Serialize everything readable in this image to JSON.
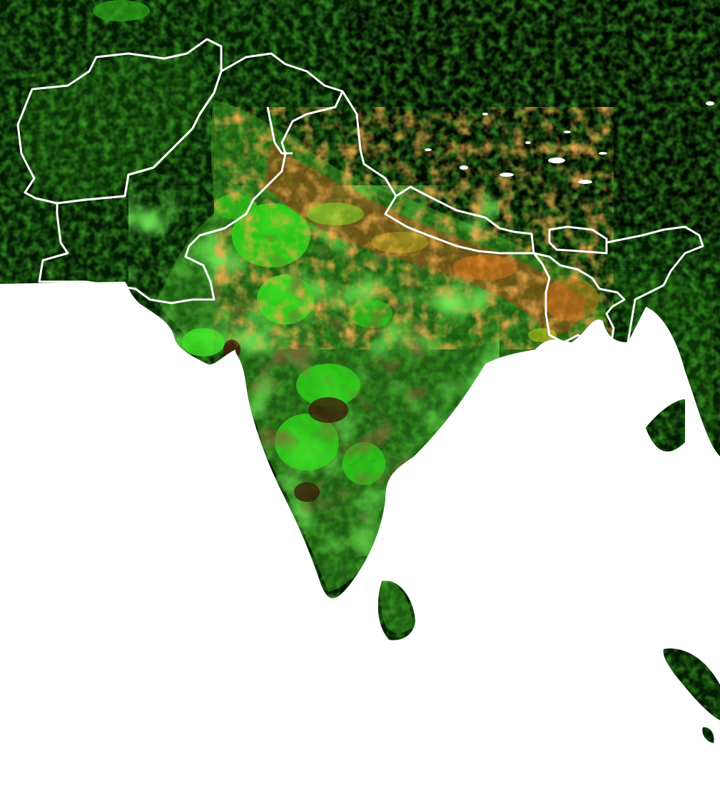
{
  "map": {
    "type": "raster-choropleth",
    "region": "South Asia",
    "colors": {
      "ocean": "#ffffff",
      "land_dark": "#021a02",
      "land_mid": "#1f5c12",
      "vegetation_bright": "#2fd51a",
      "vegetation_lime": "#7ee62a",
      "hotspot_orange": "#e0741c",
      "hotspot_red": "#b02a12",
      "hotspot_yellow": "#d8c826",
      "soil_brown": "#3a1e0a",
      "border": "#ffffff",
      "snow": "#ffffff"
    },
    "layers": [
      "land-raster",
      "hotspot-raster",
      "national-borders"
    ]
  }
}
